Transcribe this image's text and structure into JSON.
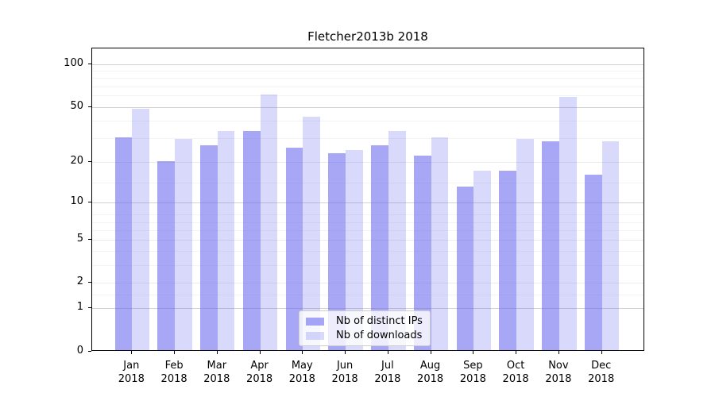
{
  "chart_data": {
    "type": "bar",
    "title": "Fletcher2013b 2018",
    "categories": [
      "Jan",
      "Feb",
      "Mar",
      "Apr",
      "May",
      "Jun",
      "Jul",
      "Aug",
      "Sep",
      "Oct",
      "Nov",
      "Dec"
    ],
    "year_label": "2018",
    "series": [
      {
        "name": "Nb of distinct IPs",
        "color_hex_rendered": "#a7a7f6",
        "css_color": "rgba(100,100,240,0.57)",
        "values": [
          30,
          20,
          26,
          33,
          25,
          23,
          26,
          22,
          13,
          17,
          28,
          16
        ]
      },
      {
        "name": "Nb of downloads",
        "color_hex_rendered": "#d8dafb",
        "css_color": "rgba(100,105,240,0.25)",
        "values": [
          48,
          29,
          33,
          60,
          42,
          24,
          33,
          30,
          17,
          29,
          58,
          28
        ]
      }
    ],
    "xlabel": "",
    "ylabel": "",
    "yticks": [
      0,
      1,
      2,
      5,
      10,
      20,
      50,
      100
    ],
    "yscale": "log10(1+x)",
    "ylim": [
      0,
      129
    ],
    "grid": true,
    "legend_position": "lower center"
  }
}
